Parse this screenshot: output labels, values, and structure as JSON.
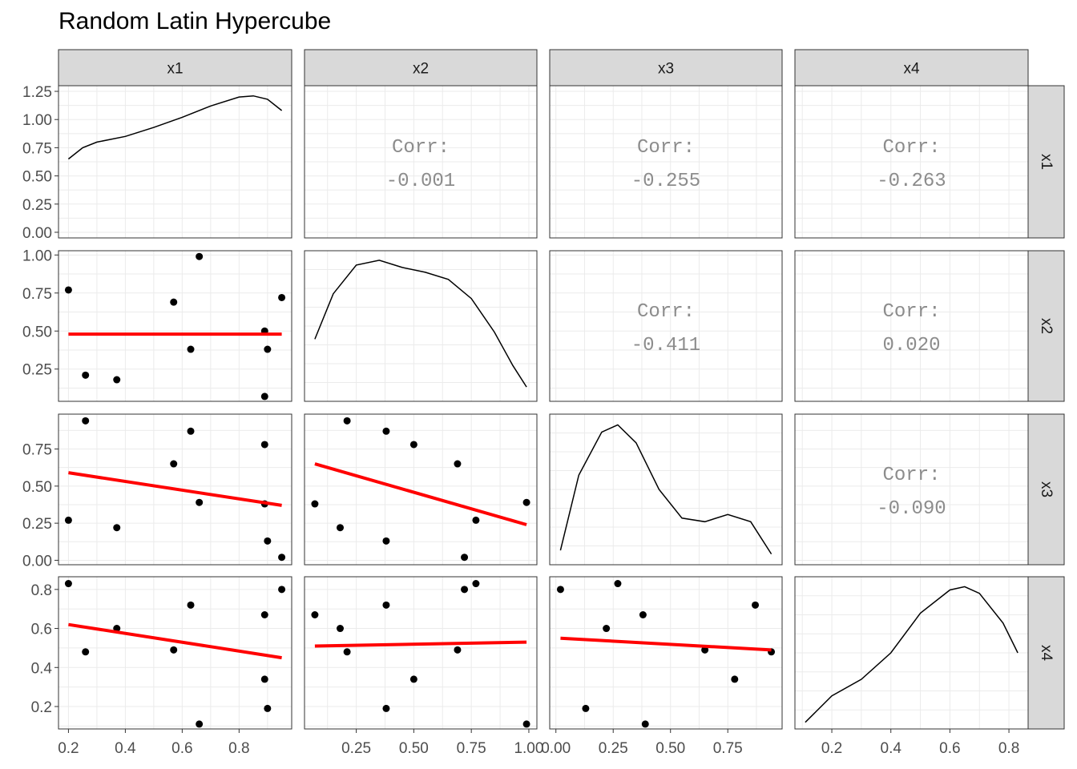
{
  "title": "Random Latin Hypercube",
  "colors": {
    "fit_line": "#ff0000",
    "points": "#000000",
    "density": "#000000",
    "strip_bg": "#d9d9d9",
    "grid": "#ebebeb",
    "corr_text": "#8c8c8c"
  },
  "chart_data": {
    "type": "scatter",
    "title": "Random Latin Hypercube",
    "variables": [
      "x1",
      "x2",
      "x3",
      "x4"
    ],
    "corr_label": "Corr:",
    "correlations": [
      {
        "row": "x1",
        "col": "x2",
        "value": "-0.001"
      },
      {
        "row": "x1",
        "col": "x3",
        "value": "-0.255"
      },
      {
        "row": "x1",
        "col": "x4",
        "value": "-0.263"
      },
      {
        "row": "x2",
        "col": "x3",
        "value": "-0.411"
      },
      {
        "row": "x2",
        "col": "x4",
        "value": "0.020"
      },
      {
        "row": "x3",
        "col": "x4",
        "value": "-0.090"
      }
    ],
    "observations": [
      {
        "x1": 0.2,
        "x2": 0.77,
        "x3": 0.27,
        "x4": 0.83
      },
      {
        "x1": 0.26,
        "x2": 0.21,
        "x3": 0.94,
        "x4": 0.48
      },
      {
        "x1": 0.37,
        "x2": 0.18,
        "x3": 0.22,
        "x4": 0.6
      },
      {
        "x1": 0.57,
        "x2": 0.69,
        "x3": 0.65,
        "x4": 0.49
      },
      {
        "x1": 0.63,
        "x2": 0.38,
        "x3": 0.87,
        "x4": 0.72
      },
      {
        "x1": 0.66,
        "x2": 0.99,
        "x3": 0.39,
        "x4": 0.11
      },
      {
        "x1": 0.89,
        "x2": 0.5,
        "x3": 0.78,
        "x4": 0.34
      },
      {
        "x1": 0.89,
        "x2": 0.07,
        "x3": 0.38,
        "x4": 0.67
      },
      {
        "x1": 0.9,
        "x2": 0.38,
        "x3": 0.13,
        "x4": 0.19
      },
      {
        "x1": 0.95,
        "x2": 0.72,
        "x3": 0.02,
        "x4": 0.8
      }
    ],
    "densities": {
      "x1": {
        "ylim": [
          0,
          1.3
        ],
        "yticks": [
          0.0,
          0.25,
          0.5,
          0.75,
          1.0,
          1.25
        ],
        "ytick_labels": [
          "0.00",
          "0.25",
          "0.50",
          "0.75",
          "1.00",
          "1.25"
        ],
        "x": [
          0.2,
          0.25,
          0.3,
          0.4,
          0.5,
          0.6,
          0.7,
          0.8,
          0.85,
          0.9,
          0.95
        ],
        "y": [
          0.65,
          0.75,
          0.8,
          0.85,
          0.93,
          1.02,
          1.12,
          1.2,
          1.21,
          1.18,
          1.08
        ]
      },
      "x2": {
        "x": [
          0.07,
          0.15,
          0.25,
          0.35,
          0.45,
          0.55,
          0.65,
          0.75,
          0.85,
          0.93,
          0.99
        ],
        "y": [
          0.66,
          0.85,
          0.97,
          0.99,
          0.96,
          0.94,
          0.91,
          0.83,
          0.69,
          0.55,
          0.46
        ]
      },
      "x3": {
        "x": [
          0.02,
          0.1,
          0.2,
          0.27,
          0.35,
          0.45,
          0.55,
          0.65,
          0.75,
          0.85,
          0.94
        ],
        "y": [
          0.59,
          0.8,
          0.92,
          0.94,
          0.89,
          0.76,
          0.68,
          0.67,
          0.69,
          0.67,
          0.58
        ]
      },
      "x4": {
        "x": [
          0.11,
          0.2,
          0.3,
          0.4,
          0.5,
          0.6,
          0.65,
          0.7,
          0.78,
          0.83
        ],
        "y": [
          0.42,
          0.5,
          0.55,
          0.63,
          0.75,
          0.82,
          0.83,
          0.81,
          0.72,
          0.63
        ]
      }
    },
    "fits": [
      {
        "row": "x2",
        "col": "x1",
        "x0": 0.2,
        "y0": 0.48,
        "x1": 0.95,
        "y1": 0.48
      },
      {
        "row": "x3",
        "col": "x1",
        "x0": 0.2,
        "y0": 0.59,
        "x1": 0.95,
        "y1": 0.37
      },
      {
        "row": "x3",
        "col": "x2",
        "x0": 0.07,
        "y0": 0.65,
        "x1": 0.99,
        "y1": 0.24
      },
      {
        "row": "x4",
        "col": "x1",
        "x0": 0.2,
        "y0": 0.62,
        "x1": 0.95,
        "y1": 0.45
      },
      {
        "row": "x4",
        "col": "x2",
        "x0": 0.07,
        "y0": 0.51,
        "x1": 0.99,
        "y1": 0.53
      },
      {
        "row": "x4",
        "col": "x3",
        "x0": 0.02,
        "y0": 0.55,
        "x1": 0.94,
        "y1": 0.49
      }
    ],
    "axes": {
      "x1": {
        "lim": [
          0.165,
          0.985
        ],
        "ticks": [
          0.2,
          0.4,
          0.6,
          0.8
        ],
        "tick_labels": [
          "0.2",
          "0.4",
          "0.6",
          "0.8"
        ]
      },
      "x2": {
        "lim": [
          0.025,
          1.035
        ],
        "ticks": [
          0.25,
          0.5,
          0.75,
          1.0
        ],
        "tick_labels": [
          "0.25",
          "0.50",
          "0.75",
          "1.00"
        ]
      },
      "x3": {
        "lim": [
          -0.027,
          0.987
        ],
        "ticks": [
          0.0,
          0.25,
          0.5,
          0.75
        ],
        "tick_labels": [
          "0.00",
          "0.25",
          "0.50",
          "0.75"
        ]
      },
      "x4": {
        "lim": [
          0.075,
          0.865
        ],
        "ticks": [
          0.2,
          0.4,
          0.6,
          0.8
        ],
        "tick_labels": [
          "0.2",
          "0.4",
          "0.6",
          "0.8"
        ]
      }
    },
    "row_axes": {
      "x2": {
        "ticks": [
          0.25,
          0.5,
          0.75,
          1.0
        ],
        "tick_labels": [
          "0.25",
          "0.50",
          "0.75",
          "1.00"
        ]
      },
      "x3": {
        "ticks": [
          0.0,
          0.25,
          0.5,
          0.75
        ],
        "tick_labels": [
          "0.00",
          "0.25",
          "0.50",
          "0.75"
        ]
      },
      "x4": {
        "ticks": [
          0.2,
          0.4,
          0.6,
          0.8
        ],
        "tick_labels": [
          "0.2",
          "0.4",
          "0.6",
          "0.8"
        ]
      }
    },
    "grid": true
  }
}
